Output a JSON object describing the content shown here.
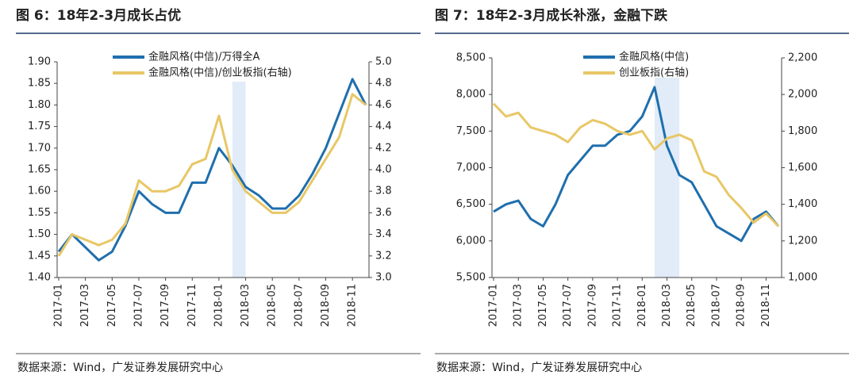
{
  "chart_data": [
    {
      "type": "line",
      "title": "图 6：18年2-3月成长占优",
      "source": "数据来源：Wind，广发证券发展研究中心",
      "x": [
        "2017-01",
        "2017-02",
        "2017-03",
        "2017-04",
        "2017-05",
        "2017-06",
        "2017-07",
        "2017-08",
        "2017-09",
        "2017-10",
        "2017-11",
        "2017-12",
        "2018-01",
        "2018-02",
        "2018-03",
        "2018-04",
        "2018-05",
        "2018-06",
        "2018-07",
        "2018-08",
        "2018-09",
        "2018-10",
        "2018-11",
        "2018-12"
      ],
      "xticks": [
        "2017-01",
        "2017-03",
        "2017-05",
        "2017-07",
        "2017-09",
        "2017-11",
        "2018-01",
        "2018-03",
        "2018-05",
        "2018-07",
        "2018-09",
        "2018-11"
      ],
      "highlight": [
        "2018-02",
        "2018-03"
      ],
      "ylim": [
        1.4,
        1.9
      ],
      "yticks": [
        {
          "value": 1.4,
          "label": "1.40"
        },
        {
          "value": 1.45,
          "label": "1.45"
        },
        {
          "value": 1.5,
          "label": "1.50"
        },
        {
          "value": 1.55,
          "label": "1.55"
        },
        {
          "value": 1.6,
          "label": "1.60"
        },
        {
          "value": 1.65,
          "label": "1.65"
        },
        {
          "value": 1.7,
          "label": "1.70"
        },
        {
          "value": 1.75,
          "label": "1.75"
        },
        {
          "value": 1.8,
          "label": "1.80"
        },
        {
          "value": 1.85,
          "label": "1.85"
        },
        {
          "value": 1.9,
          "label": "1.90"
        }
      ],
      "y2lim": [
        3.0,
        5.0
      ],
      "y2ticks": [
        {
          "value": 3,
          "label": "3.0"
        },
        {
          "value": 3.2,
          "label": "3.2"
        },
        {
          "value": 3.4,
          "label": "3.4"
        },
        {
          "value": 3.6,
          "label": "3.6"
        },
        {
          "value": 3.8,
          "label": "3.8"
        },
        {
          "value": 4,
          "label": "4.0"
        },
        {
          "value": 4.2,
          "label": "4.2"
        },
        {
          "value": 4.4,
          "label": "4.4"
        },
        {
          "value": 4.6,
          "label": "4.6"
        },
        {
          "value": 4.8,
          "label": "4.8"
        },
        {
          "value": 5,
          "label": "5.0"
        }
      ],
      "series": [
        {
          "name": "金融风格(中信)/万得全A",
          "color": "#1f6fad",
          "values": [
            1.46,
            1.5,
            1.47,
            1.44,
            1.46,
            1.52,
            1.6,
            1.57,
            1.55,
            1.55,
            1.62,
            1.62,
            1.7,
            1.66,
            1.61,
            1.59,
            1.56,
            1.56,
            1.59,
            1.64,
            1.7,
            1.78,
            1.86,
            1.8
          ]
        },
        {
          "name": "金融风格(中信)/创业板指(右轴)",
          "color": "#e8c766",
          "axis": "y2",
          "values": [
            3.2,
            3.4,
            3.35,
            3.3,
            3.35,
            3.5,
            3.9,
            3.8,
            3.8,
            3.85,
            4.05,
            4.1,
            4.5,
            4.0,
            3.8,
            3.7,
            3.6,
            3.6,
            3.7,
            3.9,
            4.1,
            4.3,
            4.7,
            4.6
          ]
        }
      ]
    },
    {
      "type": "line",
      "title": "图 7：18年2-3月成长补涨，金融下跌",
      "source": "数据来源：Wind，广发证券发展研究中心",
      "x": [
        "2017-01",
        "2017-02",
        "2017-03",
        "2017-04",
        "2017-05",
        "2017-06",
        "2017-07",
        "2017-08",
        "2017-09",
        "2017-10",
        "2017-11",
        "2017-12",
        "2018-01",
        "2018-02",
        "2018-03",
        "2018-04",
        "2018-05",
        "2018-06",
        "2018-07",
        "2018-08",
        "2018-09",
        "2018-10",
        "2018-11",
        "2018-12"
      ],
      "xticks": [
        "2017-01",
        "2017-03",
        "2017-05",
        "2017-07",
        "2017-09",
        "2017-11",
        "2018-01",
        "2018-03",
        "2018-05",
        "2018-07",
        "2018-09",
        "2018-11"
      ],
      "highlight": [
        "2018-02",
        "2018-04"
      ],
      "ylim": [
        5500,
        8500
      ],
      "yticks": [
        {
          "value": 5500,
          "label": "5,500"
        },
        {
          "value": 6000,
          "label": "6,000"
        },
        {
          "value": 6500,
          "label": "6,500"
        },
        {
          "value": 7000,
          "label": "7,000"
        },
        {
          "value": 7500,
          "label": "7,500"
        },
        {
          "value": 8000,
          "label": "8,000"
        },
        {
          "value": 8500,
          "label": "8,500"
        }
      ],
      "y2lim": [
        1000,
        2200
      ],
      "y2ticks": [
        {
          "value": 1000,
          "label": "1,000"
        },
        {
          "value": 1200,
          "label": "1,200"
        },
        {
          "value": 1400,
          "label": "1,400"
        },
        {
          "value": 1600,
          "label": "1,600"
        },
        {
          "value": 1800,
          "label": "1,800"
        },
        {
          "value": 2000,
          "label": "2,000"
        },
        {
          "value": 2200,
          "label": "2,200"
        }
      ],
      "series": [
        {
          "name": "金融风格(中信)",
          "color": "#1f6fad",
          "values": [
            6400,
            6500,
            6550,
            6300,
            6200,
            6500,
            6900,
            7100,
            7300,
            7300,
            7450,
            7500,
            7700,
            8100,
            7300,
            6900,
            6800,
            6500,
            6200,
            6100,
            6000,
            6300,
            6400,
            6200
          ]
        },
        {
          "name": "创业板指(右轴)",
          "color": "#e8c766",
          "axis": "y2",
          "values": [
            1950,
            1880,
            1900,
            1820,
            1800,
            1780,
            1740,
            1820,
            1860,
            1840,
            1800,
            1780,
            1800,
            1700,
            1760,
            1780,
            1750,
            1580,
            1550,
            1450,
            1380,
            1300,
            1350,
            1280
          ]
        }
      ]
    }
  ]
}
